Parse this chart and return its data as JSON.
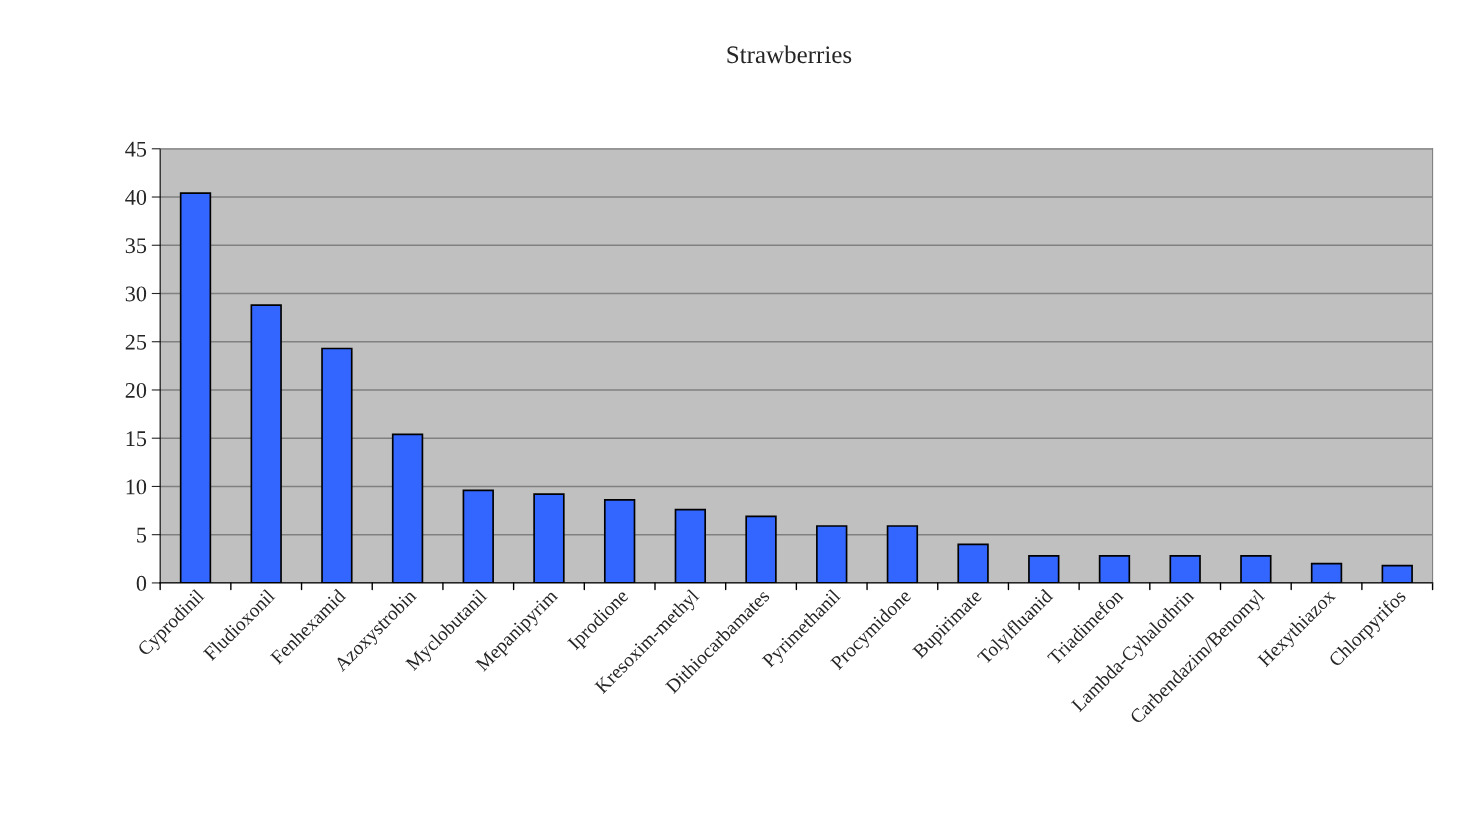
{
  "chart_data": {
    "type": "bar",
    "title": "Strawberries",
    "categories": [
      "Cyprodinil",
      "Fludioxonil",
      "Fenhexamid",
      "Azoxystrobin",
      "Myclobutanil",
      "Mepanipyrim",
      "Iprodione",
      "Kresoxim-methyl",
      "Dithiocarbamates",
      "Pyrimethanil",
      "Procymidone",
      "Bupirimate",
      "Tolylfluanid",
      "Triadimefon",
      "Lambda-Cyhalothrin",
      "Carbendazim/Benomyl",
      "Hexythiazox",
      "Chlorpyrifos"
    ],
    "values": [
      40.4,
      28.8,
      24.3,
      15.4,
      9.6,
      9.2,
      8.6,
      7.6,
      6.9,
      5.9,
      5.9,
      4.0,
      2.8,
      2.8,
      2.8,
      2.8,
      2.0,
      1.8
    ],
    "color": "#3366ff",
    "ylim": [
      0,
      45
    ],
    "yticks": [
      0,
      5,
      10,
      15,
      20,
      25,
      30,
      35,
      40,
      45
    ],
    "grid": "y",
    "legend": false
  }
}
